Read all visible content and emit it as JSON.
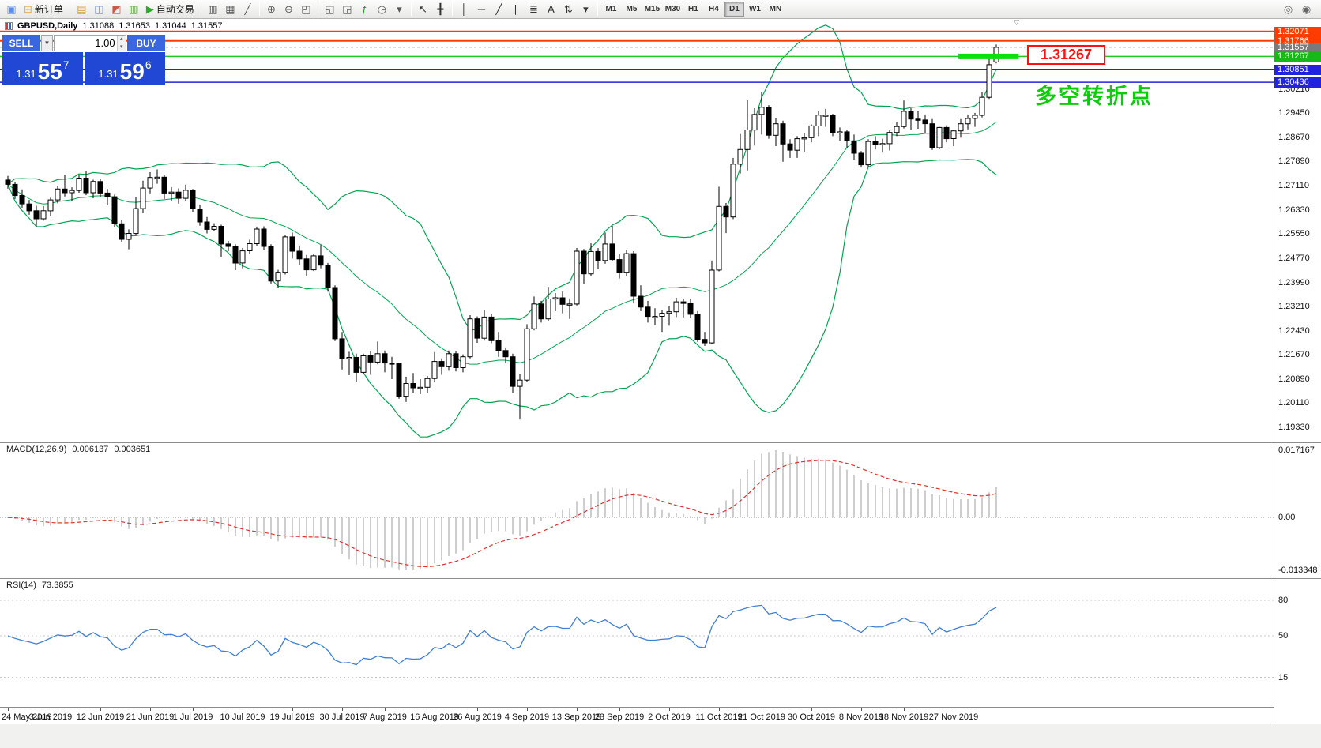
{
  "colors": {
    "bull": "#ffffff",
    "bear": "#000000",
    "bollinger": "#00a651",
    "macd_hist": "#b9b9b9",
    "macd_signal": "#e03131",
    "rsi_line": "#3f7fd4",
    "marker_green": "#0de00d",
    "note_green": "#0ccc0c",
    "callout_red": "#ff1111",
    "level_red": "#ff3c00",
    "level_blue": "#2323dd",
    "level_green": "#1fca1f",
    "panel_blue": "#2148d4",
    "panel_blue_light": "#3a67e0"
  },
  "toolbar": {
    "groups": [
      [
        {
          "name": "window",
          "glyph": "▣",
          "color": "#5b8def"
        },
        {
          "name": "new-order",
          "glyph": "⊞",
          "color": "#e8a33d",
          "label": "新订单"
        }
      ],
      [
        {
          "name": "profiles",
          "glyph": "▤",
          "color": "#c9a23c"
        },
        {
          "name": "market-watch",
          "glyph": "◫",
          "color": "#5b8def"
        },
        {
          "name": "data-window",
          "glyph": "◩",
          "color": "#c95b4a"
        },
        {
          "name": "navigator",
          "glyph": "▥",
          "color": "#6aa84f"
        },
        {
          "name": "autotrade",
          "glyph": "▶",
          "color": "#2faa2f",
          "label": "自动交易"
        }
      ],
      [
        {
          "name": "bar-chart",
          "glyph": "▥",
          "color": "#555555"
        },
        {
          "name": "candle-chart",
          "glyph": "▦",
          "color": "#555555"
        },
        {
          "name": "line-chart",
          "glyph": "╱",
          "color": "#555555"
        }
      ],
      [
        {
          "name": "zoom-in",
          "glyph": "⊕",
          "color": "#555555"
        },
        {
          "name": "zoom-out",
          "glyph": "⊖",
          "color": "#555555"
        },
        {
          "name": "tile-windows",
          "glyph": "◰",
          "color": "#555555"
        }
      ],
      [
        {
          "name": "new-chart",
          "glyph": "◱",
          "color": "#555555"
        },
        {
          "name": "chart-list",
          "glyph": "◲",
          "color": "#555555"
        },
        {
          "name": "indicators",
          "glyph": "ƒ",
          "color": "#1e9e1e"
        },
        {
          "name": "periods",
          "glyph": "◷",
          "color": "#555555"
        },
        {
          "name": "templates",
          "glyph": "▾",
          "color": "#555555"
        }
      ],
      [
        {
          "name": "cursor",
          "glyph": "↖",
          "color": "#333333"
        },
        {
          "name": "crosshair",
          "glyph": "╋",
          "color": "#333333"
        }
      ],
      [
        {
          "name": "vertical-line",
          "glyph": "│",
          "color": "#333333"
        },
        {
          "name": "horizontal-line",
          "glyph": "─",
          "color": "#333333"
        },
        {
          "name": "trendline",
          "glyph": "╱",
          "color": "#333333"
        },
        {
          "name": "channel",
          "glyph": "∥",
          "color": "#333333"
        },
        {
          "name": "fibonacci",
          "glyph": "≣",
          "color": "#333333"
        },
        {
          "name": "text",
          "glyph": "A",
          "color": "#333333"
        },
        {
          "name": "arrows",
          "glyph": "⇅",
          "color": "#333333"
        },
        {
          "name": "shapes",
          "glyph": "▾",
          "color": "#333333"
        }
      ]
    ],
    "timeframes": [
      "M1",
      "M5",
      "M15",
      "M30",
      "H1",
      "H4",
      "D1",
      "W1",
      "MN"
    ],
    "active_timeframe": "D1",
    "right_icons": [
      {
        "name": "search",
        "glyph": "◎",
        "color": "#666666"
      },
      {
        "name": "search-advanced",
        "glyph": "◉",
        "color": "#666666"
      }
    ]
  },
  "chart_header": {
    "symbol": "GBPUSD,Daily",
    "open": "1.31088",
    "high": "1.31653",
    "low": "1.31044",
    "close": "1.31557"
  },
  "trade_panel": {
    "sell_label": "SELL",
    "buy_label": "BUY",
    "volume": "1.00",
    "bid": {
      "main": "1.31",
      "pips": "55",
      "sup": "7"
    },
    "ask": {
      "main": "1.31",
      "pips": "59",
      "sup": "6"
    }
  },
  "icons": {
    "dropdown": "▼",
    "spin_up": "▴",
    "spin_down": "▾",
    "shift_marker": "▽"
  },
  "levels": [
    {
      "price": 1.32071,
      "label": "1.32071",
      "color": "#ff3c00",
      "box": "#ff3c00",
      "width": 2
    },
    {
      "price": 1.31766,
      "label": "1.31766",
      "color": "#ff3c00",
      "box": "#ff3c00",
      "width": 2
    },
    {
      "price": 1.31557,
      "label": "1.31557",
      "color": "#b8b8b8",
      "box": "#7a7a7a",
      "width": 1,
      "dash": "3 3"
    },
    {
      "price": 1.31267,
      "label": "1.31267",
      "color": "#1fca1f",
      "box": "#17b817",
      "width": 1.5
    },
    {
      "price": 1.30851,
      "label": "1.30851",
      "color": "#2323dd",
      "box": "#2323dd",
      "width": 1.5
    },
    {
      "price": 1.30436,
      "label": "1.30436",
      "color": "#2323dd",
      "box": "#2323dd",
      "width": 1.5
    }
  ],
  "annotations": {
    "price_box": "1.31267",
    "note": "多空转折点",
    "marker_price": 1.31267
  },
  "price_scale": [
    "1.30210",
    "1.29450",
    "1.28670",
    "1.27890",
    "1.27110",
    "1.26330",
    "1.25550",
    "1.24770",
    "1.23990",
    "1.23210",
    "1.22430",
    "1.21670",
    "1.20890",
    "1.20110",
    "1.19330"
  ],
  "macd_panel": {
    "label": "MACD(12,26,9)",
    "value_main": "0.006137",
    "value_signal": "0.003651",
    "scale": [
      "0.017167",
      "0.00",
      "-0.013348"
    ]
  },
  "rsi_panel": {
    "label": "RSI(14)",
    "value": "73.3855",
    "levels": [
      "80",
      "50",
      "15"
    ]
  },
  "time_axis": [
    {
      "idx": 0,
      "label": "24 May 2019"
    },
    {
      "idx": 6,
      "label": "3 Jun 2019"
    },
    {
      "idx": 13,
      "label": "12 Jun 2019"
    },
    {
      "idx": 20,
      "label": "21 Jun 2019"
    },
    {
      "idx": 26,
      "label": "1 Jul 2019"
    },
    {
      "idx": 33,
      "label": "10 Jul 2019"
    },
    {
      "idx": 40,
      "label": "19 Jul 2019"
    },
    {
      "idx": 47,
      "label": "30 Jul 2019"
    },
    {
      "idx": 53,
      "label": "7 Aug 2019"
    },
    {
      "idx": 60,
      "label": "16 Aug 2019"
    },
    {
      "idx": 66,
      "label": "26 Aug 2019"
    },
    {
      "idx": 73,
      "label": "4 Sep 2019"
    },
    {
      "idx": 80,
      "label": "13 Sep 2019"
    },
    {
      "idx": 86,
      "label": "23 Sep 2019"
    },
    {
      "idx": 93,
      "label": "2 Oct 2019"
    },
    {
      "idx": 100,
      "label": "11 Oct 2019"
    },
    {
      "idx": 106,
      "label": "21 Oct 2019"
    },
    {
      "idx": 113,
      "label": "30 Oct 2019"
    },
    {
      "idx": 120,
      "label": "8 Nov 2019"
    },
    {
      "idx": 126,
      "label": "18 Nov 2019"
    },
    {
      "idx": 133,
      "label": "27 Nov 2019"
    }
  ],
  "chart_data": {
    "type": "candlestick",
    "symbol": "GBPUSD",
    "timeframe": "Daily",
    "indicators": [
      {
        "name": "Bollinger Bands",
        "period": 20,
        "deviation": 2
      },
      {
        "name": "MACD",
        "fast": 12,
        "slow": 26,
        "signal": 9,
        "current_main": 0.006137,
        "current_signal": 0.003651
      },
      {
        "name": "RSI",
        "period": 14,
        "current": 73.3855
      }
    ],
    "candles": [
      [
        1.2729,
        1.2742,
        1.2701,
        1.2715
      ],
      [
        1.2715,
        1.2722,
        1.2668,
        1.2679
      ],
      [
        1.2679,
        1.2699,
        1.264,
        1.2652
      ],
      [
        1.2652,
        1.2665,
        1.2617,
        1.263
      ],
      [
        1.263,
        1.2646,
        1.258,
        1.2604
      ],
      [
        1.2604,
        1.2645,
        1.2598,
        1.263
      ],
      [
        1.263,
        1.2672,
        1.2612,
        1.2665
      ],
      [
        1.2665,
        1.271,
        1.2654,
        1.27
      ],
      [
        1.27,
        1.2744,
        1.2676,
        1.2688
      ],
      [
        1.2688,
        1.2705,
        1.2662,
        1.2695
      ],
      [
        1.2695,
        1.2747,
        1.2688,
        1.2735
      ],
      [
        1.2735,
        1.2758,
        1.268,
        1.2688
      ],
      [
        1.2688,
        1.273,
        1.267,
        1.2724
      ],
      [
        1.2724,
        1.2733,
        1.2675,
        1.2687
      ],
      [
        1.2687,
        1.27,
        1.2648,
        1.2675
      ],
      [
        1.2675,
        1.2682,
        1.2578,
        1.2588
      ],
      [
        1.2588,
        1.26,
        1.253,
        1.2538
      ],
      [
        1.2538,
        1.257,
        1.2506,
        1.2557
      ],
      [
        1.2557,
        1.2674,
        1.255,
        1.2637
      ],
      [
        1.2637,
        1.2727,
        1.2622,
        1.2703
      ],
      [
        1.2703,
        1.2754,
        1.2686,
        1.2737
      ],
      [
        1.2737,
        1.2763,
        1.2717,
        1.2738
      ],
      [
        1.2738,
        1.2745,
        1.2668,
        1.2687
      ],
      [
        1.2687,
        1.2706,
        1.2662,
        1.269
      ],
      [
        1.269,
        1.2702,
        1.2653,
        1.267
      ],
      [
        1.267,
        1.2714,
        1.266,
        1.2696
      ],
      [
        1.2696,
        1.27,
        1.2627,
        1.2636
      ],
      [
        1.2636,
        1.2648,
        1.2582,
        1.2594
      ],
      [
        1.2594,
        1.261,
        1.2557,
        1.257
      ],
      [
        1.257,
        1.259,
        1.2564,
        1.258
      ],
      [
        1.258,
        1.2585,
        1.2481,
        1.2523
      ],
      [
        1.2523,
        1.2533,
        1.25,
        1.2515
      ],
      [
        1.2515,
        1.2522,
        1.2439,
        1.2462
      ],
      [
        1.2462,
        1.251,
        1.2445,
        1.2501
      ],
      [
        1.2501,
        1.2537,
        1.2492,
        1.2524
      ],
      [
        1.2524,
        1.2579,
        1.2518,
        1.2571
      ],
      [
        1.2571,
        1.258,
        1.2505,
        1.2515
      ],
      [
        1.2515,
        1.2522,
        1.2396,
        1.2404
      ],
      [
        1.2404,
        1.244,
        1.2382,
        1.2432
      ],
      [
        1.2432,
        1.2552,
        1.2425,
        1.2546
      ],
      [
        1.2546,
        1.256,
        1.2476,
        1.25
      ],
      [
        1.25,
        1.2518,
        1.2455,
        1.2475
      ],
      [
        1.2475,
        1.2488,
        1.2419,
        1.244
      ],
      [
        1.244,
        1.2492,
        1.2436,
        1.2485
      ],
      [
        1.2485,
        1.252,
        1.2445,
        1.2455
      ],
      [
        1.2455,
        1.2462,
        1.237,
        1.2383
      ],
      [
        1.2383,
        1.239,
        1.2211,
        1.2218
      ],
      [
        1.2218,
        1.224,
        1.2119,
        1.2154
      ],
      [
        1.2154,
        1.2176,
        1.2101,
        1.2158
      ],
      [
        1.2158,
        1.217,
        1.208,
        1.211
      ],
      [
        1.211,
        1.217,
        1.2105,
        1.2163
      ],
      [
        1.2163,
        1.2178,
        1.2102,
        1.2143
      ],
      [
        1.2143,
        1.2209,
        1.2136,
        1.217
      ],
      [
        1.217,
        1.218,
        1.211,
        1.214
      ],
      [
        1.214,
        1.216,
        1.2088,
        1.2138
      ],
      [
        1.2138,
        1.214,
        1.2025,
        1.2033
      ],
      [
        1.2033,
        1.2096,
        1.2015,
        1.2074
      ],
      [
        1.2074,
        1.2108,
        1.2043,
        1.206
      ],
      [
        1.206,
        1.2088,
        1.204,
        1.2062
      ],
      [
        1.2062,
        1.2098,
        1.2044,
        1.209
      ],
      [
        1.209,
        1.2175,
        1.208,
        1.2145
      ],
      [
        1.2145,
        1.2155,
        1.2102,
        1.2128
      ],
      [
        1.2128,
        1.218,
        1.2115,
        1.217
      ],
      [
        1.217,
        1.2178,
        1.2113,
        1.2125
      ],
      [
        1.2125,
        1.2168,
        1.211,
        1.216
      ],
      [
        1.216,
        1.2294,
        1.2155,
        1.2282
      ],
      [
        1.2282,
        1.229,
        1.2205,
        1.222
      ],
      [
        1.222,
        1.231,
        1.2212,
        1.2288
      ],
      [
        1.2288,
        1.2298,
        1.2204,
        1.2212
      ],
      [
        1.2212,
        1.224,
        1.216,
        1.218
      ],
      [
        1.218,
        1.219,
        1.214,
        1.216
      ],
      [
        1.216,
        1.217,
        1.2045,
        1.2065
      ],
      [
        1.2065,
        1.2105,
        1.1958,
        1.2085
      ],
      [
        1.2085,
        1.2265,
        1.208,
        1.225
      ],
      [
        1.225,
        1.2354,
        1.2245,
        1.233
      ],
      [
        1.233,
        1.234,
        1.227,
        1.2282
      ],
      [
        1.2282,
        1.2385,
        1.2274,
        1.2346
      ],
      [
        1.2346,
        1.2365,
        1.2307,
        1.235
      ],
      [
        1.235,
        1.237,
        1.23,
        1.2329
      ],
      [
        1.2329,
        1.2348,
        1.2282,
        1.233
      ],
      [
        1.233,
        1.251,
        1.2325,
        1.25
      ],
      [
        1.25,
        1.2507,
        1.2395,
        1.2427
      ],
      [
        1.2427,
        1.2525,
        1.242,
        1.2499
      ],
      [
        1.2499,
        1.251,
        1.2442,
        1.247
      ],
      [
        1.247,
        1.256,
        1.246,
        1.2523
      ],
      [
        1.2523,
        1.2582,
        1.2467,
        1.2473
      ],
      [
        1.2473,
        1.249,
        1.2412,
        1.2432
      ],
      [
        1.2432,
        1.2504,
        1.242,
        1.2492
      ],
      [
        1.2492,
        1.25,
        1.2332,
        1.2355
      ],
      [
        1.2355,
        1.239,
        1.2307,
        1.232
      ],
      [
        1.232,
        1.234,
        1.227,
        1.229
      ],
      [
        1.229,
        1.2316,
        1.2262,
        1.229
      ],
      [
        1.229,
        1.231,
        1.224,
        1.23
      ],
      [
        1.23,
        1.2322,
        1.226,
        1.2305
      ],
      [
        1.2305,
        1.235,
        1.2288,
        1.2337
      ],
      [
        1.2337,
        1.2347,
        1.2287,
        1.2332
      ],
      [
        1.2332,
        1.2345,
        1.2286,
        1.2297
      ],
      [
        1.2297,
        1.2307,
        1.2208,
        1.2216
      ],
      [
        1.2216,
        1.224,
        1.2195,
        1.2205
      ],
      [
        1.2205,
        1.247,
        1.22,
        1.2439
      ],
      [
        1.2439,
        1.2707,
        1.2435,
        1.2644
      ],
      [
        1.2644,
        1.2655,
        1.2558,
        1.261
      ],
      [
        1.261,
        1.28,
        1.2603,
        1.278
      ],
      [
        1.278,
        1.2877,
        1.275,
        1.2827
      ],
      [
        1.2827,
        1.2988,
        1.276,
        1.289
      ],
      [
        1.289,
        1.296,
        1.284,
        1.294
      ],
      [
        1.294,
        1.3012,
        1.2875,
        1.2963
      ],
      [
        1.2963,
        1.297,
        1.2862,
        1.2873
      ],
      [
        1.2873,
        1.2928,
        1.2838,
        1.291
      ],
      [
        1.291,
        1.292,
        1.2788,
        1.2845
      ],
      [
        1.2845,
        1.286,
        1.28,
        1.2825
      ],
      [
        1.2825,
        1.287,
        1.28,
        1.2862
      ],
      [
        1.2862,
        1.288,
        1.2818,
        1.2865
      ],
      [
        1.2865,
        1.2908,
        1.285,
        1.2903
      ],
      [
        1.2903,
        1.295,
        1.287,
        1.2938
      ],
      [
        1.2938,
        1.2958,
        1.29,
        1.2938
      ],
      [
        1.2938,
        1.2942,
        1.287,
        1.2882
      ],
      [
        1.2882,
        1.2898,
        1.2855,
        1.2884
      ],
      [
        1.2884,
        1.289,
        1.2832,
        1.2855
      ],
      [
        1.2855,
        1.2875,
        1.2794,
        1.2815
      ],
      [
        1.2815,
        1.2822,
        1.2769,
        1.2778
      ],
      [
        1.2778,
        1.286,
        1.277,
        1.2853
      ],
      [
        1.2853,
        1.287,
        1.2827,
        1.2844
      ],
      [
        1.2844,
        1.2862,
        1.2817,
        1.2846
      ],
      [
        1.2846,
        1.289,
        1.2824,
        1.2882
      ],
      [
        1.2882,
        1.2915,
        1.287,
        1.2901
      ],
      [
        1.2901,
        1.2985,
        1.2895,
        1.295
      ],
      [
        1.295,
        1.296,
        1.289,
        1.2925
      ],
      [
        1.2925,
        1.295,
        1.2894,
        1.2922
      ],
      [
        1.2922,
        1.294,
        1.288,
        1.291
      ],
      [
        1.291,
        1.2925,
        1.2826,
        1.2833
      ],
      [
        1.2833,
        1.29,
        1.2828,
        1.2898
      ],
      [
        1.2898,
        1.2905,
        1.285,
        1.2862
      ],
      [
        1.2862,
        1.289,
        1.2838,
        1.2887
      ],
      [
        1.2887,
        1.2925,
        1.2865,
        1.291
      ],
      [
        1.291,
        1.294,
        1.2892,
        1.2927
      ],
      [
        1.2927,
        1.2945,
        1.29,
        1.2937
      ],
      [
        1.2937,
        1.3012,
        1.293,
        1.2995
      ],
      [
        1.2995,
        1.3119,
        1.299,
        1.31
      ],
      [
        1.3109,
        1.3165,
        1.3104,
        1.3156
      ]
    ]
  }
}
